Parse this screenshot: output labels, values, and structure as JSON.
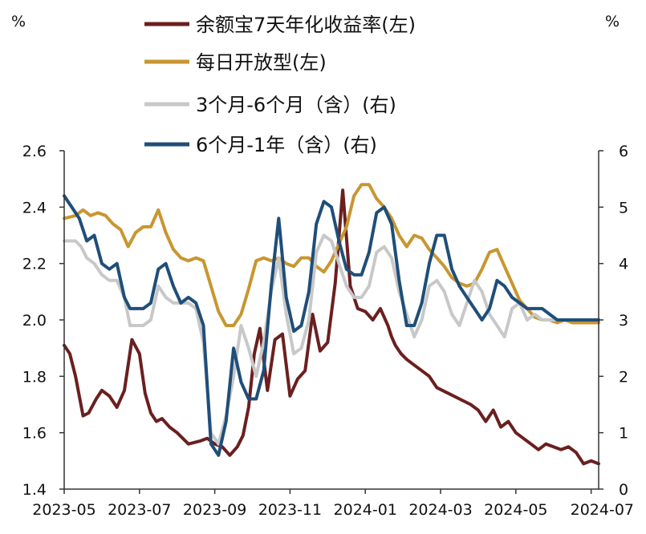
{
  "chart_data": {
    "type": "line",
    "left_unit": "%",
    "right_unit": "%",
    "y_left": {
      "min": 1.4,
      "max": 2.6,
      "ticks": [
        "1.4",
        "1.6",
        "1.8",
        "2.0",
        "2.2",
        "2.4",
        "2.6"
      ]
    },
    "y_right": {
      "min": 0,
      "max": 6,
      "ticks": [
        "0",
        "1",
        "2",
        "3",
        "4",
        "5",
        "6"
      ]
    },
    "x_ticks": [
      "2023-05",
      "2023-07",
      "2023-09",
      "2023-11",
      "2024-01",
      "2024-03",
      "2024-05",
      "2024-07"
    ],
    "legend_placement": "top-center",
    "grid": false,
    "series": [
      {
        "name": "余额宝7天年化收益率(左)",
        "axis": "left",
        "color": "#6b1f1f",
        "x": [
          0.0,
          0.15,
          0.3,
          0.5,
          0.65,
          0.85,
          1.0,
          1.2,
          1.4,
          1.6,
          1.8,
          2.0,
          2.15,
          2.3,
          2.45,
          2.6,
          2.8,
          3.0,
          3.3,
          3.6,
          3.8,
          4.0,
          4.2,
          4.4,
          4.6,
          4.75,
          4.9,
          5.05,
          5.2,
          5.4,
          5.6,
          5.8,
          6.0,
          6.2,
          6.4,
          6.6,
          6.8,
          7.0,
          7.2,
          7.4,
          7.6,
          7.8,
          8.0,
          8.2,
          8.4,
          8.6,
          8.7,
          8.8,
          8.95,
          9.1,
          9.3,
          9.5,
          9.7,
          9.9,
          10.2,
          10.5,
          10.8,
          11.0,
          11.2,
          11.4,
          11.6,
          11.8,
          12.0,
          12.2,
          12.4,
          12.6,
          12.8,
          13.0,
          13.2,
          13.4,
          13.6,
          13.8,
          14.0,
          14.2
        ],
        "values": [
          1.91,
          1.88,
          1.8,
          1.66,
          1.67,
          1.72,
          1.75,
          1.73,
          1.69,
          1.75,
          1.93,
          1.88,
          1.74,
          1.67,
          1.64,
          1.65,
          1.62,
          1.6,
          1.56,
          1.57,
          1.58,
          1.56,
          1.55,
          1.52,
          1.55,
          1.59,
          1.69,
          1.88,
          1.97,
          1.75,
          1.93,
          1.95,
          1.73,
          1.79,
          1.82,
          2.02,
          1.89,
          1.92,
          2.13,
          2.46,
          2.12,
          2.04,
          2.03,
          2.0,
          2.04,
          1.98,
          1.94,
          1.91,
          1.88,
          1.86,
          1.84,
          1.82,
          1.8,
          1.76,
          1.74,
          1.72,
          1.7,
          1.68,
          1.64,
          1.68,
          1.62,
          1.64,
          1.6,
          1.58,
          1.56,
          1.54,
          1.56,
          1.55,
          1.54,
          1.55,
          1.53,
          1.49,
          1.5,
          1.49
        ]
      },
      {
        "name": "每日开放型(左)",
        "axis": "left",
        "color": "#c89630",
        "x": [
          0.0,
          0.3,
          0.5,
          0.7,
          0.9,
          1.1,
          1.3,
          1.5,
          1.7,
          1.9,
          2.1,
          2.3,
          2.5,
          2.7,
          2.9,
          3.1,
          3.3,
          3.5,
          3.7,
          3.9,
          4.1,
          4.3,
          4.5,
          4.7,
          4.9,
          5.1,
          5.3,
          5.5,
          5.7,
          5.9,
          6.1,
          6.3,
          6.5,
          6.7,
          6.9,
          7.1,
          7.3,
          7.5,
          7.7,
          7.9,
          8.1,
          8.3,
          8.5,
          8.7,
          8.9,
          9.1,
          9.3,
          9.5,
          9.7,
          9.9,
          10.1,
          10.3,
          10.5,
          10.7,
          10.9,
          11.1,
          11.3,
          11.5,
          11.7,
          11.9,
          12.1,
          12.3,
          12.5,
          12.7,
          12.9,
          13.1,
          13.3,
          13.5,
          13.7,
          13.9,
          14.2
        ],
        "values": [
          2.36,
          2.37,
          2.39,
          2.37,
          2.38,
          2.37,
          2.34,
          2.32,
          2.26,
          2.31,
          2.33,
          2.33,
          2.39,
          2.31,
          2.25,
          2.22,
          2.21,
          2.22,
          2.21,
          2.12,
          2.03,
          1.98,
          1.98,
          2.02,
          2.11,
          2.21,
          2.22,
          2.21,
          2.22,
          2.2,
          2.19,
          2.22,
          2.22,
          2.19,
          2.17,
          2.21,
          2.27,
          2.33,
          2.44,
          2.48,
          2.48,
          2.43,
          2.4,
          2.36,
          2.3,
          2.26,
          2.3,
          2.29,
          2.25,
          2.22,
          2.19,
          2.15,
          2.13,
          2.12,
          2.13,
          2.18,
          2.24,
          2.25,
          2.19,
          2.13,
          2.07,
          2.04,
          2.01,
          2.0,
          2.0,
          1.99,
          2.0,
          1.99,
          1.99,
          1.99,
          1.99
        ]
      },
      {
        "name": "3个月-6个月（含）(右)",
        "axis": "right",
        "color": "#c8c8c8",
        "x": [
          0.0,
          0.3,
          0.45,
          0.6,
          0.8,
          1.0,
          1.2,
          1.4,
          1.6,
          1.75,
          1.9,
          2.1,
          2.3,
          2.5,
          2.7,
          2.9,
          3.1,
          3.3,
          3.5,
          3.7,
          3.9,
          4.1,
          4.3,
          4.5,
          4.7,
          4.9,
          5.1,
          5.3,
          5.5,
          5.7,
          5.9,
          6.1,
          6.3,
          6.5,
          6.7,
          6.9,
          7.1,
          7.3,
          7.5,
          7.7,
          7.9,
          8.1,
          8.3,
          8.5,
          8.7,
          8.9,
          9.1,
          9.3,
          9.5,
          9.7,
          9.9,
          10.1,
          10.3,
          10.5,
          10.7,
          10.9,
          11.1,
          11.3,
          11.5,
          11.7,
          11.9,
          12.1,
          12.3,
          12.5,
          12.7,
          12.9,
          13.1,
          13.3,
          13.5,
          13.7,
          13.9,
          14.2
        ],
        "values": [
          4.4,
          4.4,
          4.3,
          4.1,
          4.0,
          3.8,
          3.7,
          3.7,
          3.4,
          2.9,
          2.9,
          2.9,
          3.0,
          3.6,
          3.4,
          3.3,
          3.3,
          3.3,
          3.2,
          2.6,
          1.0,
          0.8,
          1.3,
          2.0,
          2.9,
          2.5,
          2.0,
          2.6,
          3.5,
          4.1,
          3.1,
          2.4,
          2.5,
          3.0,
          4.2,
          4.5,
          4.4,
          4.0,
          3.6,
          3.4,
          3.4,
          3.6,
          4.2,
          4.3,
          4.1,
          3.5,
          3.1,
          2.7,
          3.0,
          3.6,
          3.7,
          3.5,
          3.1,
          2.9,
          3.3,
          3.7,
          3.5,
          3.1,
          2.9,
          2.7,
          3.2,
          3.3,
          3.0,
          3.1,
          3.0,
          3.0,
          3.0,
          3.0,
          3.0,
          3.0,
          3.0,
          3.0
        ]
      },
      {
        "name": "6个月-1年（含）(右)",
        "axis": "right",
        "color": "#1f4e79",
        "x": [
          0.0,
          0.2,
          0.4,
          0.6,
          0.8,
          1.0,
          1.2,
          1.4,
          1.6,
          1.75,
          1.9,
          2.1,
          2.3,
          2.5,
          2.7,
          2.9,
          3.1,
          3.3,
          3.5,
          3.7,
          3.9,
          4.1,
          4.3,
          4.5,
          4.7,
          4.9,
          5.1,
          5.3,
          5.5,
          5.7,
          5.9,
          6.1,
          6.3,
          6.5,
          6.7,
          6.9,
          7.1,
          7.3,
          7.5,
          7.7,
          7.9,
          8.1,
          8.3,
          8.5,
          8.7,
          8.9,
          9.1,
          9.3,
          9.5,
          9.7,
          9.9,
          10.1,
          10.3,
          10.5,
          10.7,
          10.9,
          11.1,
          11.3,
          11.5,
          11.7,
          11.9,
          12.1,
          12.3,
          12.5,
          12.7,
          12.9,
          13.1,
          13.3,
          13.5,
          13.7,
          13.9,
          14.2
        ],
        "values": [
          5.2,
          5.0,
          4.8,
          4.4,
          4.5,
          4.0,
          3.9,
          4.0,
          3.4,
          3.2,
          3.2,
          3.2,
          3.3,
          3.9,
          4.0,
          3.6,
          3.3,
          3.4,
          3.3,
          2.9,
          0.8,
          0.6,
          1.2,
          2.5,
          1.9,
          1.6,
          1.6,
          2.1,
          3.6,
          4.8,
          3.4,
          2.8,
          2.9,
          3.5,
          4.7,
          5.1,
          5.0,
          4.4,
          3.9,
          3.8,
          3.8,
          4.2,
          4.9,
          5.0,
          4.7,
          3.7,
          2.9,
          2.9,
          3.3,
          4.0,
          4.5,
          4.5,
          3.9,
          3.6,
          3.4,
          3.2,
          3.0,
          3.2,
          3.7,
          3.6,
          3.4,
          3.3,
          3.2,
          3.2,
          3.2,
          3.1,
          3.0,
          3.0,
          3.0,
          3.0,
          3.0,
          3.0
        ]
      }
    ]
  }
}
